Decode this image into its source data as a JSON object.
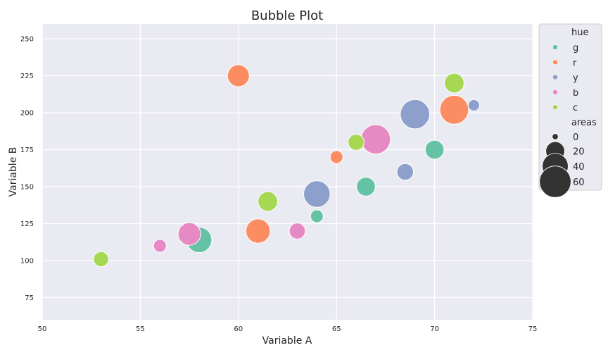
{
  "chart_data": {
    "type": "scatter",
    "title": "Bubble Plot",
    "xlabel": "Variable A",
    "ylabel": "Variable B",
    "xlim": [
      50,
      75
    ],
    "ylim": [
      60,
      260
    ],
    "xticks": [
      50,
      55,
      60,
      65,
      70,
      75
    ],
    "yticks": [
      75,
      100,
      125,
      150,
      175,
      200,
      225,
      250
    ],
    "grid": true,
    "legend_position": "outside-right",
    "hue_title": "hue",
    "size_title": "areas",
    "hue_levels": [
      {
        "name": "g",
        "color": "#66c2a5"
      },
      {
        "name": "r",
        "color": "#fc8d62"
      },
      {
        "name": "y",
        "color": "#8da0cb"
      },
      {
        "name": "b",
        "color": "#e78ac3"
      },
      {
        "name": "c",
        "color": "#a6d854"
      }
    ],
    "size_levels": [
      0,
      20,
      40,
      60
    ],
    "points": [
      {
        "x": 58,
        "y": 114,
        "hue": "g",
        "area": 38
      },
      {
        "x": 64,
        "y": 130,
        "hue": "g",
        "area": 8
      },
      {
        "x": 66.5,
        "y": 150,
        "hue": "g",
        "area": 20
      },
      {
        "x": 70,
        "y": 175,
        "hue": "g",
        "area": 20
      },
      {
        "x": 60,
        "y": 225,
        "hue": "r",
        "area": 28
      },
      {
        "x": 61,
        "y": 120,
        "hue": "r",
        "area": 35
      },
      {
        "x": 65,
        "y": 170,
        "hue": "r",
        "area": 8
      },
      {
        "x": 71,
        "y": 202,
        "hue": "r",
        "area": 50
      },
      {
        "x": 64,
        "y": 145,
        "hue": "y",
        "area": 42
      },
      {
        "x": 68.5,
        "y": 160,
        "hue": "y",
        "area": 15
      },
      {
        "x": 69,
        "y": 199,
        "hue": "y",
        "area": 52
      },
      {
        "x": 72,
        "y": 205,
        "hue": "y",
        "area": 6
      },
      {
        "x": 56,
        "y": 110,
        "hue": "b",
        "area": 8
      },
      {
        "x": 57.5,
        "y": 118,
        "hue": "b",
        "area": 30
      },
      {
        "x": 63,
        "y": 120,
        "hue": "b",
        "area": 14
      },
      {
        "x": 67,
        "y": 182,
        "hue": "b",
        "area": 52
      },
      {
        "x": 53,
        "y": 101,
        "hue": "c",
        "area": 12
      },
      {
        "x": 61.5,
        "y": 140,
        "hue": "c",
        "area": 22
      },
      {
        "x": 66,
        "y": 180,
        "hue": "c",
        "area": 14
      },
      {
        "x": 71,
        "y": 220,
        "hue": "c",
        "area": 22
      }
    ]
  },
  "legend_marker_color": "#333333"
}
